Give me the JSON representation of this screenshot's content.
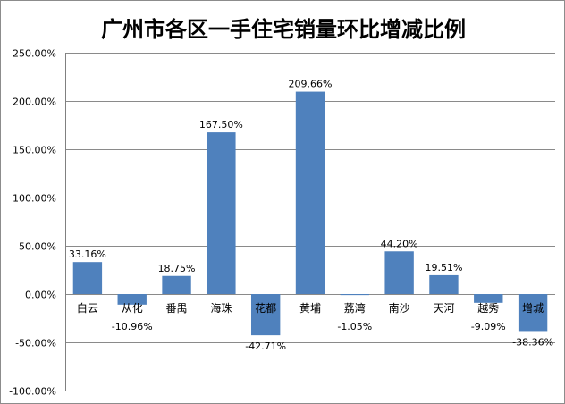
{
  "chart_data": {
    "type": "bar",
    "title": "广州市各区一手住宅销量环比增减比例",
    "xlabel": "",
    "ylabel": "",
    "ylim": [
      -100,
      250
    ],
    "yticks": [
      250,
      200,
      150,
      100,
      50,
      0,
      -50,
      -100
    ],
    "ytick_labels": [
      "250.00%",
      "200.00%",
      "150.00%",
      "100.00%",
      "50.00%",
      "0.00%",
      "-50.00%",
      "-100.00%"
    ],
    "grid": true,
    "legend": "none",
    "categories": [
      "白云",
      "从化",
      "番禺",
      "海珠",
      "花都",
      "黄埔",
      "荔湾",
      "南沙",
      "天河",
      "越秀",
      "增城"
    ],
    "values": [
      33.16,
      -10.96,
      18.75,
      167.5,
      -42.71,
      209.66,
      -1.05,
      44.2,
      19.51,
      -9.09,
      -38.36
    ],
    "data_labels": [
      "33.16%",
      "-10.96%",
      "18.75%",
      "167.50%",
      "-42.71%",
      "209.66%",
      "-1.05%",
      "44.20%",
      "19.51%",
      "-9.09%",
      "-38.36%"
    ],
    "colors": {
      "bar": "#4F81BD"
    }
  }
}
